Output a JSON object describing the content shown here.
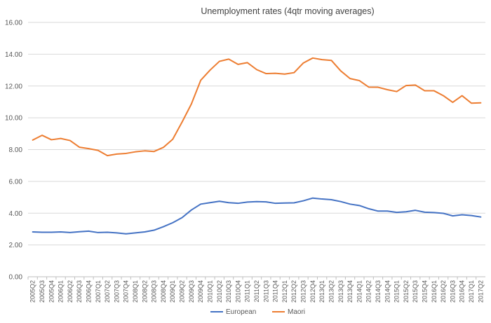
{
  "chart_data": {
    "type": "line",
    "title": "Unemployment rates (4qtr moving averages)",
    "xlabel": "",
    "ylabel": "",
    "ylim": [
      0,
      16
    ],
    "ytick_labels": [
      "0.00",
      "2.00",
      "4.00",
      "6.00",
      "8.00",
      "10.00",
      "12.00",
      "14.00",
      "16.00"
    ],
    "grid": true,
    "legend_position": "bottom",
    "categories": [
      "2005Q2",
      "2005Q3",
      "2005Q4",
      "2006Q1",
      "2006Q2",
      "2006Q3",
      "2006Q4",
      "2007Q1",
      "2007Q2",
      "2007Q3",
      "2007Q4",
      "2008Q1",
      "2008Q2",
      "2008Q3",
      "2008Q4",
      "2009Q1",
      "2009Q2",
      "2009Q3",
      "2009Q4",
      "2010Q1",
      "2010Q2",
      "2010Q3",
      "2010Q4",
      "2011Q1",
      "2011Q2",
      "2011Q3",
      "2011Q4",
      "2012Q1",
      "2012Q2",
      "2012Q3",
      "2012Q4",
      "2013Q1",
      "2013Q2",
      "2013Q3",
      "2013Q4",
      "2014Q1",
      "2014Q2",
      "2014Q3",
      "2014Q4",
      "2015Q1",
      "2015Q2",
      "2015Q3",
      "2015Q4",
      "2016Q1",
      "2016Q2",
      "2016Q3",
      "2016Q4",
      "2017Q1",
      "2017Q2"
    ],
    "series": [
      {
        "name": "European",
        "color": "#4472c4",
        "values": [
          2.82,
          2.8,
          2.8,
          2.82,
          2.78,
          2.83,
          2.87,
          2.78,
          2.8,
          2.76,
          2.7,
          2.76,
          2.82,
          2.93,
          3.15,
          3.4,
          3.72,
          4.2,
          4.57,
          4.66,
          4.75,
          4.66,
          4.62,
          4.7,
          4.73,
          4.71,
          4.62,
          4.64,
          4.65,
          4.78,
          4.95,
          4.89,
          4.85,
          4.73,
          4.57,
          4.48,
          4.28,
          4.13,
          4.13,
          4.05,
          4.09,
          4.18,
          4.06,
          4.04,
          3.99,
          3.83,
          3.9,
          3.85,
          3.76
        ]
      },
      {
        "name": "Maori",
        "color": "#ed7d31",
        "values": [
          8.6,
          8.9,
          8.62,
          8.7,
          8.57,
          8.15,
          8.06,
          7.95,
          7.62,
          7.72,
          7.76,
          7.86,
          7.92,
          7.88,
          8.14,
          8.65,
          9.73,
          10.87,
          12.36,
          13.0,
          13.55,
          13.69,
          13.36,
          13.47,
          13.03,
          12.78,
          12.8,
          12.75,
          12.84,
          13.45,
          13.76,
          13.66,
          13.61,
          12.95,
          12.47,
          12.34,
          11.93,
          11.92,
          11.77,
          11.65,
          12.03,
          12.06,
          11.7,
          11.7,
          11.39,
          10.97,
          11.39,
          10.92,
          10.94
        ]
      }
    ]
  }
}
